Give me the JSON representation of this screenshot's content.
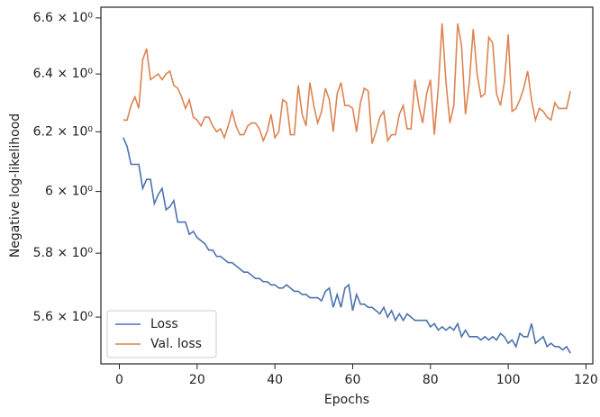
{
  "chart_data": {
    "type": "line",
    "xlabel": "Epochs",
    "ylabel": "Negative log-likelihood",
    "x": [
      1,
      2,
      3,
      4,
      5,
      6,
      7,
      8,
      9,
      10,
      11,
      12,
      13,
      14,
      15,
      16,
      17,
      18,
      19,
      20,
      21,
      22,
      23,
      24,
      25,
      26,
      27,
      28,
      29,
      30,
      31,
      32,
      33,
      34,
      35,
      36,
      37,
      38,
      39,
      40,
      41,
      42,
      43,
      44,
      45,
      46,
      47,
      48,
      49,
      50,
      51,
      52,
      53,
      54,
      55,
      56,
      57,
      58,
      59,
      60,
      61,
      62,
      63,
      64,
      65,
      66,
      67,
      68,
      69,
      70,
      71,
      72,
      73,
      74,
      75,
      76,
      77,
      78,
      79,
      80,
      81,
      82,
      83,
      84,
      85,
      86,
      87,
      88,
      89,
      90,
      91,
      92,
      93,
      94,
      95,
      96,
      97,
      98,
      99,
      100,
      101,
      102,
      103,
      104,
      105,
      106,
      107,
      108,
      109,
      110,
      111,
      112,
      113,
      114,
      115,
      116
    ],
    "series": [
      {
        "name": "Loss",
        "color": "#4c72b0",
        "values": [
          6.18,
          6.15,
          6.09,
          6.09,
          6.09,
          6.01,
          6.04,
          6.04,
          5.96,
          5.99,
          6.01,
          5.94,
          5.95,
          5.97,
          5.9,
          5.9,
          5.9,
          5.86,
          5.87,
          5.85,
          5.84,
          5.83,
          5.81,
          5.81,
          5.79,
          5.79,
          5.78,
          5.77,
          5.77,
          5.76,
          5.75,
          5.74,
          5.74,
          5.73,
          5.72,
          5.72,
          5.71,
          5.71,
          5.7,
          5.7,
          5.69,
          5.69,
          5.7,
          5.69,
          5.68,
          5.68,
          5.67,
          5.67,
          5.66,
          5.66,
          5.66,
          5.65,
          5.68,
          5.69,
          5.63,
          5.67,
          5.63,
          5.69,
          5.7,
          5.62,
          5.67,
          5.64,
          5.64,
          5.63,
          5.63,
          5.62,
          5.61,
          5.63,
          5.6,
          5.62,
          5.59,
          5.61,
          5.59,
          5.61,
          5.6,
          5.59,
          5.59,
          5.59,
          5.59,
          5.57,
          5.58,
          5.56,
          5.57,
          5.56,
          5.57,
          5.56,
          5.58,
          5.54,
          5.56,
          5.54,
          5.54,
          5.54,
          5.53,
          5.54,
          5.53,
          5.54,
          5.53,
          5.55,
          5.54,
          5.52,
          5.53,
          5.51,
          5.55,
          5.54,
          5.54,
          5.58,
          5.52,
          5.53,
          5.54,
          5.51,
          5.52,
          5.51,
          5.51,
          5.5,
          5.51,
          5.49
        ]
      },
      {
        "name": "Val. loss",
        "color": "#dd8452",
        "values": [
          6.24,
          6.24,
          6.29,
          6.32,
          6.28,
          6.45,
          6.49,
          6.38,
          6.39,
          6.4,
          6.38,
          6.4,
          6.41,
          6.36,
          6.35,
          6.32,
          6.28,
          6.31,
          6.25,
          6.24,
          6.22,
          6.25,
          6.25,
          6.22,
          6.2,
          6.21,
          6.18,
          6.22,
          6.27,
          6.22,
          6.19,
          6.19,
          6.22,
          6.23,
          6.23,
          6.21,
          6.17,
          6.2,
          6.26,
          6.18,
          6.2,
          6.31,
          6.3,
          6.19,
          6.19,
          6.36,
          6.26,
          6.22,
          6.37,
          6.29,
          6.23,
          6.27,
          6.35,
          6.31,
          6.2,
          6.33,
          6.37,
          6.29,
          6.29,
          6.28,
          6.2,
          6.3,
          6.35,
          6.34,
          6.16,
          6.2,
          6.25,
          6.27,
          6.17,
          6.19,
          6.19,
          6.26,
          6.29,
          6.21,
          6.21,
          6.38,
          6.29,
          6.23,
          6.33,
          6.38,
          6.19,
          6.35,
          6.58,
          6.37,
          6.23,
          6.29,
          6.58,
          6.5,
          6.26,
          6.37,
          6.56,
          6.4,
          6.32,
          6.33,
          6.53,
          6.51,
          6.33,
          6.29,
          6.37,
          6.54,
          6.27,
          6.28,
          6.31,
          6.35,
          6.41,
          6.31,
          6.24,
          6.28,
          6.27,
          6.25,
          6.24,
          6.3,
          6.28,
          6.28,
          6.28,
          6.34
        ]
      }
    ],
    "xlim": [
      -4.75,
      121.75
    ],
    "xticks": [
      0,
      20,
      40,
      60,
      80,
      100,
      120
    ],
    "ylim": [
      5.458,
      6.639
    ],
    "yscale": "log",
    "yticks": [
      {
        "value": 5.6,
        "label": "5.6 × 10⁰"
      },
      {
        "value": 5.8,
        "label": "5.8 × 10⁰"
      },
      {
        "value": 6,
        "label": "6 × 10⁰"
      },
      {
        "value": 6.2,
        "label": "6.2 × 10⁰"
      },
      {
        "value": 6.4,
        "label": "6.4 × 10⁰"
      },
      {
        "value": 6.6,
        "label": "6.6 × 10⁰"
      }
    ],
    "grid": false,
    "legend": "lower left"
  }
}
